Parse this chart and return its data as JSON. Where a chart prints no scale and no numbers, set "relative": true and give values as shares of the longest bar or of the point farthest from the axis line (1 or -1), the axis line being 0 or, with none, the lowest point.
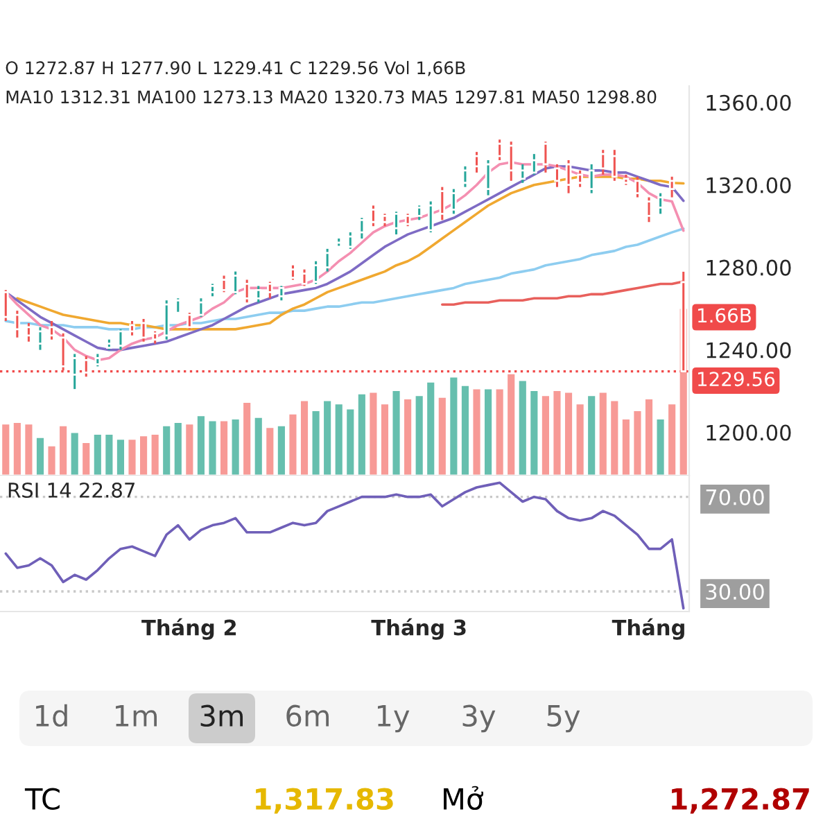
{
  "chart_data": [
    {
      "type": "candlestick",
      "categories": [
        null,
        null,
        null,
        null,
        null,
        null,
        null,
        null,
        null,
        null,
        null,
        null,
        null,
        null,
        null,
        null,
        null,
        null,
        null,
        null,
        null,
        null,
        null,
        null,
        null,
        null,
        null,
        null,
        null,
        null,
        null,
        null,
        null,
        null,
        null,
        null,
        null,
        null,
        null,
        null,
        null,
        null,
        null,
        null,
        null,
        null,
        null,
        null,
        null,
        null,
        null,
        null,
        null,
        null,
        null,
        null,
        null,
        null,
        null,
        null
      ],
      "ohlc": [
        [
          1268,
          1269,
          1254,
          1256
        ],
        [
          1257,
          1259,
          1246,
          1250
        ],
        [
          1251,
          1253,
          1244,
          1247
        ],
        [
          1243,
          1251,
          1240,
          1249
        ],
        [
          1251,
          1254,
          1245,
          1247
        ],
        [
          1246,
          1248,
          1230,
          1232
        ],
        [
          1228,
          1238,
          1221,
          1236
        ],
        [
          1235,
          1237,
          1227,
          1229
        ],
        [
          1233,
          1238,
          1232,
          1236
        ],
        [
          1241,
          1245,
          1240,
          1243
        ],
        [
          1242,
          1250,
          1240,
          1249
        ],
        [
          1252,
          1254,
          1247,
          1249
        ],
        [
          1253,
          1255,
          1244,
          1246
        ],
        [
          1248,
          1249,
          1243,
          1245
        ],
        [
          1247,
          1264,
          1245,
          1262
        ],
        [
          1258,
          1265,
          1258,
          1264
        ],
        [
          1257,
          1258,
          1250,
          1251
        ],
        [
          1257,
          1265,
          1256,
          1263
        ],
        [
          1268,
          1272,
          1266,
          1271
        ],
        [
          1274,
          1276,
          1268,
          1269
        ],
        [
          1268,
          1278,
          1267,
          1276
        ],
        [
          1272,
          1274,
          1263,
          1265
        ],
        [
          1265,
          1271,
          1263,
          1269
        ],
        [
          1272,
          1273,
          1265,
          1268
        ],
        [
          1266,
          1271,
          1264,
          1270
        ],
        [
          1279,
          1281,
          1274,
          1275
        ],
        [
          1277,
          1279,
          1271,
          1272
        ],
        [
          1273,
          1283,
          1272,
          1281
        ],
        [
          1280,
          1289,
          1278,
          1287
        ],
        [
          1290,
          1294,
          1290,
          1292
        ],
        [
          1290,
          1297,
          1289,
          1295
        ],
        [
          1297,
          1304,
          1294,
          1303
        ],
        [
          1308,
          1310,
          1300,
          1302
        ],
        [
          1305,
          1306,
          1300,
          1302
        ],
        [
          1299,
          1307,
          1296,
          1306
        ],
        [
          1305,
          1306,
          1300,
          1301
        ],
        [
          1305,
          1310,
          1303,
          1309
        ],
        [
          1298,
          1312,
          1297,
          1310
        ],
        [
          1317,
          1319,
          1303,
          1306
        ],
        [
          1308,
          1318,
          1306,
          1316
        ],
        [
          1321,
          1329,
          1319,
          1327
        ],
        [
          1334,
          1336,
          1326,
          1329
        ],
        [
          1318,
          1332,
          1315,
          1330
        ],
        [
          1340,
          1342,
          1332,
          1334
        ],
        [
          1339,
          1341,
          1322,
          1327
        ],
        [
          1323,
          1330,
          1321,
          1327
        ],
        [
          1326,
          1335,
          1325,
          1332
        ],
        [
          1340,
          1341,
          1326,
          1330
        ],
        [
          1328,
          1330,
          1319,
          1322
        ],
        [
          1330,
          1332,
          1316,
          1320
        ],
        [
          1325,
          1327,
          1319,
          1321
        ],
        [
          1318,
          1330,
          1316,
          1327
        ],
        [
          1335,
          1337,
          1325,
          1328
        ],
        [
          1334,
          1337,
          1322,
          1324
        ],
        [
          1323,
          1325,
          1320,
          1321
        ],
        [
          1322,
          1324,
          1314,
          1316
        ],
        [
          1312,
          1314,
          1302,
          1305
        ],
        [
          1309,
          1316,
          1306,
          1314
        ],
        [
          1322,
          1324,
          1314,
          1318
        ],
        [
          1272.87,
          1277.9,
          1229.41,
          1229.56
        ]
      ],
      "colors": [
        "#ef5350",
        "#ef5350",
        "#ef5350",
        "#26a69a",
        "#ef5350",
        "#ef5350",
        "#26a69a",
        "#ef5350",
        "#26a69a",
        "#26a69a",
        "#26a69a",
        "#ef5350",
        "#ef5350",
        "#ef5350",
        "#26a69a",
        "#26a69a",
        "#ef5350",
        "#26a69a",
        "#26a69a",
        "#ef5350",
        "#26a69a",
        "#ef5350",
        "#26a69a",
        "#ef5350",
        "#26a69a",
        "#ef5350",
        "#ef5350",
        "#26a69a",
        "#26a69a",
        "#26a69a",
        "#26a69a",
        "#26a69a",
        "#ef5350",
        "#ef5350",
        "#26a69a",
        "#ef5350",
        "#26a69a",
        "#26a69a",
        "#ef5350",
        "#26a69a",
        "#26a69a",
        "#ef5350",
        "#26a69a",
        "#ef5350",
        "#ef5350",
        "#26a69a",
        "#26a69a",
        "#ef5350",
        "#ef5350",
        "#ef5350",
        "#ef5350",
        "#26a69a",
        "#ef5350",
        "#ef5350",
        "#ef5350",
        "#ef5350",
        "#ef5350",
        "#26a69a",
        "#ef5350",
        "#ef5350"
      ],
      "series": [
        {
          "type": "line",
          "color": "#8ecdf0",
          "values": [
            1254,
            1253,
            1253,
            1252,
            1252,
            1252,
            1251,
            1251,
            1251,
            1250,
            1250,
            1250,
            1251,
            1251,
            1252,
            1252,
            1253,
            1253,
            1254,
            1255,
            1255,
            1256,
            1257,
            1258,
            1258,
            1259,
            1259,
            1260,
            1261,
            1261,
            1262,
            1263,
            1263,
            1264,
            1265,
            1266,
            1267,
            1268,
            1269,
            1270,
            1272,
            1273,
            1274,
            1275,
            1277,
            1278,
            1279,
            1281,
            1282,
            1283,
            1284,
            1286,
            1287,
            1288,
            1290,
            1291,
            1293,
            1295,
            1297,
            1298.8
          ]
        },
        {
          "type": "line",
          "color": "#e8605c",
          "values": [
            null,
            null,
            null,
            null,
            null,
            null,
            null,
            null,
            null,
            null,
            null,
            null,
            null,
            null,
            null,
            null,
            null,
            null,
            null,
            null,
            null,
            null,
            null,
            null,
            null,
            null,
            null,
            null,
            null,
            null,
            null,
            null,
            null,
            null,
            null,
            null,
            null,
            null,
            1262,
            1262,
            1263,
            1263,
            1263,
            1264,
            1264,
            1264,
            1265,
            1265,
            1265,
            1266,
            1266,
            1267,
            1267,
            1268,
            1269,
            1270,
            1271,
            1272,
            1272,
            1273.13
          ]
        },
        {
          "type": "line",
          "color": "#f0a830",
          "values": [
            null,
            1265,
            1263,
            1261,
            1259,
            1257,
            1256,
            1255,
            1254,
            1253,
            1253,
            1252,
            1252,
            1251,
            1250,
            1250,
            1250,
            1250,
            1250,
            1250,
            1250,
            1251,
            1252,
            1253,
            1257,
            1260,
            1262,
            1265,
            1268,
            1270,
            1272,
            1274,
            1276,
            1278,
            1281,
            1283,
            1286,
            1290,
            1294,
            1298,
            1302,
            1306,
            1310,
            1313,
            1316,
            1318,
            1320,
            1321,
            1322,
            1323,
            1324,
            1324,
            1324,
            1324,
            1323,
            1323,
            1322,
            1322,
            1321,
            1320.73
          ]
        },
        {
          "type": "line",
          "color": "#7e6bc4",
          "values": [
            1268,
            1264,
            1260,
            1256,
            1253,
            1250,
            1247,
            1244,
            1241,
            1240,
            1240,
            1241,
            1242,
            1243,
            1244,
            1246,
            1248,
            1250,
            1252,
            1255,
            1258,
            1261,
            1263,
            1265,
            1267,
            1268,
            1269,
            1270,
            1272,
            1275,
            1278,
            1282,
            1286,
            1290,
            1293,
            1296,
            1298,
            1300,
            1302,
            1304,
            1307,
            1310,
            1313,
            1316,
            1319,
            1322,
            1325,
            1328,
            1329,
            1329,
            1328,
            1327,
            1327,
            1326,
            1326,
            1324,
            1322,
            1320,
            1319,
            1312.31
          ]
        },
        {
          "type": "line",
          "color": "#f48fb1",
          "values": [
            1268,
            1262,
            1257,
            1252,
            1250,
            1246,
            1240,
            1237,
            1235,
            1236,
            1240,
            1243,
            1245,
            1246,
            1249,
            1252,
            1254,
            1256,
            1260,
            1263,
            1268,
            1270,
            1270,
            1270,
            1270,
            1271,
            1272,
            1274,
            1278,
            1283,
            1287,
            1292,
            1297,
            1300,
            1302,
            1303,
            1304,
            1306,
            1308,
            1311,
            1315,
            1320,
            1326,
            1330,
            1331,
            1330,
            1330,
            1330,
            1329,
            1327,
            1325,
            1324,
            1325,
            1325,
            1324,
            1321,
            1316,
            1313,
            1312,
            1297.81
          ]
        }
      ],
      "ylim": [
        1179,
        1368
      ],
      "yticks": [
        {
          "value": 1200,
          "label": "1200.00"
        },
        {
          "value": 1240,
          "label": "1240.00"
        },
        {
          "value": 1280,
          "label": "1280.00"
        },
        {
          "value": 1320,
          "label": "1320.00"
        },
        {
          "value": 1360,
          "label": "1360.00"
        }
      ],
      "tick_labels": "y",
      "ref_lines": [
        {
          "axis": "y",
          "value": 1229.56,
          "label": "1229.56",
          "color": "#f04a4a",
          "line_style": "dotted"
        }
      ],
      "annotations": [
        "O 1272.87 H 1277.90 L 1229.41 C 1229.56 Vol 1,66B",
        "MA10 1312.31 MA100 1273.13 MA20 1320.73 MA5 1297.81 MA50 1298.80"
      ]
    },
    {
      "type": "bar",
      "relative": true,
      "categories": [
        null,
        null,
        null,
        null,
        null,
        null,
        null,
        null,
        null,
        null,
        null,
        null,
        null,
        null,
        null,
        null,
        null,
        null,
        null,
        null,
        null,
        null,
        null,
        null,
        null,
        null,
        null,
        null,
        null,
        null,
        null,
        null,
        null,
        null,
        null,
        null,
        null,
        null,
        null,
        null,
        null,
        null,
        null,
        null,
        null,
        null,
        null,
        null,
        null,
        null,
        null,
        null,
        null,
        null,
        null,
        null,
        null,
        null,
        null,
        null
      ],
      "values": [
        0.31,
        0.32,
        0.31,
        0.23,
        0.18,
        0.3,
        0.26,
        0.2,
        0.25,
        0.25,
        0.22,
        0.22,
        0.24,
        0.25,
        0.3,
        0.32,
        0.31,
        0.36,
        0.33,
        0.33,
        0.34,
        0.44,
        0.35,
        0.29,
        0.3,
        0.37,
        0.45,
        0.39,
        0.45,
        0.43,
        0.4,
        0.49,
        0.5,
        0.43,
        0.51,
        0.46,
        0.48,
        0.56,
        0.47,
        0.59,
        0.54,
        0.52,
        0.52,
        0.52,
        0.61,
        0.57,
        0.51,
        0.48,
        0.51,
        0.5,
        0.43,
        0.48,
        0.5,
        0.45,
        0.34,
        0.39,
        0.46,
        0.34,
        0.43,
        1
      ],
      "colors": [
        "#f79a96",
        "#f79a96",
        "#f79a96",
        "#66bfae",
        "#f79a96",
        "#f79a96",
        "#66bfae",
        "#f79a96",
        "#66bfae",
        "#66bfae",
        "#66bfae",
        "#f79a96",
        "#f79a96",
        "#f79a96",
        "#66bfae",
        "#66bfae",
        "#f79a96",
        "#66bfae",
        "#66bfae",
        "#f79a96",
        "#66bfae",
        "#f79a96",
        "#66bfae",
        "#f79a96",
        "#66bfae",
        "#f79a96",
        "#f79a96",
        "#66bfae",
        "#66bfae",
        "#66bfae",
        "#66bfae",
        "#66bfae",
        "#f79a96",
        "#f79a96",
        "#66bfae",
        "#f79a96",
        "#66bfae",
        "#66bfae",
        "#f79a96",
        "#66bfae",
        "#66bfae",
        "#f79a96",
        "#66bfae",
        "#f79a96",
        "#f79a96",
        "#66bfae",
        "#66bfae",
        "#f79a96",
        "#f79a96",
        "#f79a96",
        "#f79a96",
        "#66bfae",
        "#f79a96",
        "#f79a96",
        "#f79a96",
        "#f79a96",
        "#f79a96",
        "#66bfae",
        "#f79a96",
        "#f79a96"
      ],
      "tick_labels": false,
      "annotations": [
        "1.66B"
      ]
    },
    {
      "type": "line",
      "categories": [
        null,
        null,
        null,
        null,
        null,
        null,
        null,
        null,
        null,
        null,
        null,
        null,
        null,
        null,
        null,
        null,
        "Tháng 2",
        null,
        null,
        null,
        null,
        null,
        null,
        null,
        null,
        null,
        null,
        null,
        null,
        null,
        null,
        null,
        null,
        null,
        null,
        null,
        "Tháng 3",
        null,
        null,
        null,
        null,
        null,
        null,
        null,
        null,
        null,
        null,
        null,
        null,
        null,
        null,
        null,
        null,
        null,
        null,
        null,
        "Tháng",
        null,
        null,
        null
      ],
      "series": [
        {
          "color": "#6f5fb8",
          "values": [
            46,
            40,
            41,
            44,
            41,
            34,
            37,
            35,
            39,
            44,
            48,
            49,
            47,
            45,
            54,
            58,
            52,
            56,
            58,
            59,
            61,
            55,
            55,
            55,
            57,
            59,
            58,
            59,
            64,
            66,
            68,
            70,
            70,
            70,
            71,
            70,
            70,
            71,
            66,
            69,
            72,
            74,
            75,
            76,
            72,
            68,
            70,
            69,
            64,
            61,
            60,
            61,
            64,
            62,
            58,
            54,
            48,
            48,
            52,
            22.87
          ]
        }
      ],
      "ylim": [
        21.5,
        79
      ],
      "yticks": [
        {
          "value": 30,
          "label": "30.00"
        },
        {
          "value": 70,
          "label": "70.00"
        }
      ],
      "ref_lines": [
        {
          "axis": "y",
          "value": 30,
          "color": "#c8c8c8",
          "line_style": "dotted"
        },
        {
          "axis": "y",
          "value": 70,
          "color": "#c8c8c8",
          "line_style": "dotted"
        }
      ],
      "annotations": [
        "RSI 14 22.87"
      ]
    },
    {
      "type": "other",
      "annotations": [
        "1d",
        "1m",
        "3m",
        "6m",
        "1y",
        "3y",
        "5y",
        "TC",
        "1,317.83",
        "Mở",
        "1,272.87"
      ]
    }
  ]
}
